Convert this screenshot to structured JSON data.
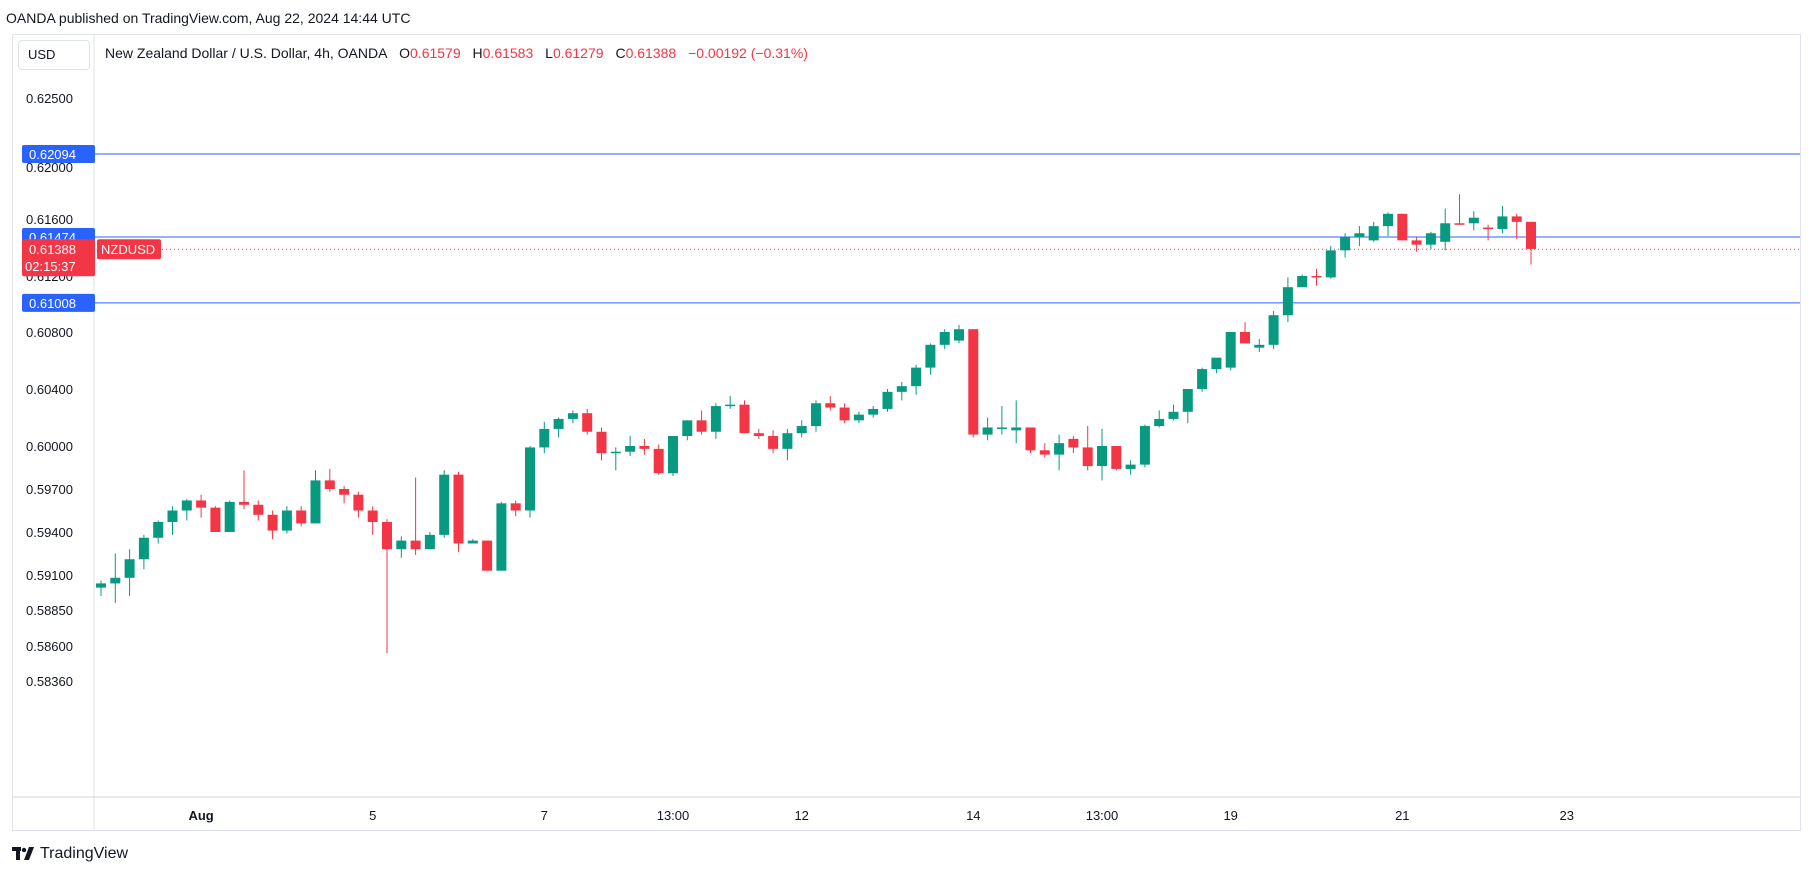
{
  "header": {
    "attribution": "OANDA published on TradingView.com, Aug 22, 2024 14:44 UTC"
  },
  "toolbar": {
    "currency": "USD"
  },
  "legend": {
    "title": "New Zealand Dollar / U.S. Dollar, 4h, OANDA",
    "o_label": "O",
    "o_value": "0.61579",
    "h_label": "H",
    "h_value": "0.61583",
    "l_label": "L",
    "l_value": "0.61279",
    "c_label": "C",
    "c_value": "0.61388",
    "change": "−0.00192 (−0.31%)"
  },
  "footer": {
    "brand": "TradingView"
  },
  "colors": {
    "up": "#089981",
    "down": "#f23645",
    "line": "#2962ff",
    "grid_text": "#131722"
  },
  "chart_data": {
    "type": "candlestick",
    "title": "New Zealand Dollar / U.S. Dollar, 4h, OANDA",
    "symbol": "NZDUSD",
    "y_ticks": [
      "0.62500",
      "0.62000",
      "0.61600",
      "0.61200",
      "0.60800",
      "0.60400",
      "0.60000",
      "0.59700",
      "0.59400",
      "0.59100",
      "0.58850",
      "0.58600",
      "0.58360"
    ],
    "y_tick_values": [
      0.625,
      0.62,
      0.616,
      0.612,
      0.608,
      0.604,
      0.6,
      0.597,
      0.594,
      0.591,
      0.5885,
      0.586,
      0.5836
    ],
    "x_labels": [
      "Aug",
      "5",
      "7",
      "13:00",
      "12",
      "14",
      "13:00",
      "19",
      "21",
      "23"
    ],
    "x_label_bars": [
      7,
      19,
      31,
      40,
      49,
      61,
      70,
      79,
      91,
      102.5
    ],
    "horizontal_lines": [
      {
        "value": 0.62094,
        "label": "0.62094"
      },
      {
        "value": 0.61474,
        "label": "0.61474"
      },
      {
        "value": 0.61008,
        "label": "0.61008"
      }
    ],
    "last_price": {
      "value": 0.61388,
      "label": "0.61388",
      "countdown": "02:15:37",
      "symbol_tag": "NZDUSD"
    },
    "ohlc": [
      [
        0.5901,
        0.5906,
        0.5895,
        0.5904
      ],
      [
        0.5904,
        0.5925,
        0.589,
        0.5908
      ],
      [
        0.5908,
        0.5928,
        0.5895,
        0.5921
      ],
      [
        0.5921,
        0.5938,
        0.5914,
        0.5936
      ],
      [
        0.5936,
        0.5948,
        0.5932,
        0.5947
      ],
      [
        0.5947,
        0.5958,
        0.5938,
        0.5955
      ],
      [
        0.5955,
        0.5963,
        0.5948,
        0.5962
      ],
      [
        0.5962,
        0.5966,
        0.595,
        0.5957
      ],
      [
        0.5957,
        0.5958,
        0.594,
        0.594
      ],
      [
        0.594,
        0.5962,
        0.594,
        0.5961
      ],
      [
        0.5961,
        0.5983,
        0.5956,
        0.5959
      ],
      [
        0.5959,
        0.5962,
        0.5948,
        0.5952
      ],
      [
        0.5952,
        0.5955,
        0.5935,
        0.5941
      ],
      [
        0.5941,
        0.5958,
        0.5939,
        0.5955
      ],
      [
        0.5955,
        0.5958,
        0.5944,
        0.5946
      ],
      [
        0.5946,
        0.5983,
        0.5946,
        0.5976
      ],
      [
        0.5976,
        0.5984,
        0.5968,
        0.597
      ],
      [
        0.597,
        0.5972,
        0.596,
        0.5966
      ],
      [
        0.5966,
        0.5968,
        0.595,
        0.5955
      ],
      [
        0.5955,
        0.5958,
        0.5938,
        0.5947
      ],
      [
        0.5947,
        0.5949,
        0.5855,
        0.5928
      ],
      [
        0.5928,
        0.5937,
        0.5922,
        0.5934
      ],
      [
        0.5934,
        0.5978,
        0.5924,
        0.5928
      ],
      [
        0.5928,
        0.594,
        0.5928,
        0.5938
      ],
      [
        0.5938,
        0.5983,
        0.5936,
        0.598
      ],
      [
        0.598,
        0.5982,
        0.5926,
        0.5932
      ],
      [
        0.5932,
        0.5935,
        0.5932,
        0.5934
      ],
      [
        0.5934,
        0.5934,
        0.5913,
        0.5913
      ],
      [
        0.5913,
        0.5961,
        0.5913,
        0.596
      ],
      [
        0.596,
        0.5962,
        0.5951,
        0.5955
      ],
      [
        0.5955,
        0.6,
        0.595,
        0.5999
      ],
      [
        0.5999,
        0.6017,
        0.5995,
        0.6012
      ],
      [
        0.6012,
        0.602,
        0.6006,
        0.6019
      ],
      [
        0.6019,
        0.6025,
        0.6016,
        0.6023
      ],
      [
        0.6023,
        0.6026,
        0.6008,
        0.601
      ],
      [
        0.601,
        0.6013,
        0.599,
        0.5995
      ],
      [
        0.5995,
        0.5999,
        0.5983,
        0.5996
      ],
      [
        0.5996,
        0.6007,
        0.5993,
        0.6
      ],
      [
        0.6,
        0.6005,
        0.5994,
        0.5998
      ],
      [
        0.5998,
        0.6001,
        0.598,
        0.5981
      ],
      [
        0.5981,
        0.6007,
        0.5979,
        0.6007
      ],
      [
        0.6007,
        0.6018,
        0.6004,
        0.6018
      ],
      [
        0.6018,
        0.6025,
        0.6008,
        0.601
      ],
      [
        0.601,
        0.603,
        0.6005,
        0.6028
      ],
      [
        0.6028,
        0.6035,
        0.6026,
        0.6029
      ],
      [
        0.6029,
        0.6032,
        0.6009,
        0.6009
      ],
      [
        0.6009,
        0.6012,
        0.6005,
        0.6007
      ],
      [
        0.6007,
        0.6011,
        0.5995,
        0.5998
      ],
      [
        0.5998,
        0.6012,
        0.599,
        0.6009
      ],
      [
        0.6009,
        0.6018,
        0.6006,
        0.6014
      ],
      [
        0.6014,
        0.6032,
        0.601,
        0.603
      ],
      [
        0.603,
        0.6035,
        0.6025,
        0.6027
      ],
      [
        0.6027,
        0.603,
        0.6016,
        0.6018
      ],
      [
        0.6018,
        0.6024,
        0.6016,
        0.6022
      ],
      [
        0.6022,
        0.6028,
        0.602,
        0.6026
      ],
      [
        0.6026,
        0.604,
        0.6024,
        0.6038
      ],
      [
        0.6038,
        0.6045,
        0.6032,
        0.6042
      ],
      [
        0.6042,
        0.6057,
        0.6036,
        0.6055
      ],
      [
        0.6055,
        0.6072,
        0.605,
        0.6071
      ],
      [
        0.6071,
        0.6082,
        0.6068,
        0.608
      ],
      [
        0.6074,
        0.6085,
        0.6072,
        0.6082
      ],
      [
        0.6082,
        0.6082,
        0.6006,
        0.6008
      ],
      [
        0.6008,
        0.602,
        0.6004,
        0.6013
      ],
      [
        0.6013,
        0.6028,
        0.6008,
        0.6013
      ],
      [
        0.6011,
        0.6032,
        0.6002,
        0.6013
      ],
      [
        0.6013,
        0.6013,
        0.5995,
        0.5997
      ],
      [
        0.5997,
        0.6002,
        0.5992,
        0.5994
      ],
      [
        0.5994,
        0.6008,
        0.5983,
        0.6002
      ],
      [
        0.6005,
        0.6007,
        0.5995,
        0.5999
      ],
      [
        0.5999,
        0.6014,
        0.5983,
        0.5986
      ],
      [
        0.5986,
        0.6012,
        0.5976,
        0.6
      ],
      [
        0.6,
        0.6,
        0.5983,
        0.5984
      ],
      [
        0.5984,
        0.599,
        0.598,
        0.5987
      ],
      [
        0.5987,
        0.6015,
        0.5985,
        0.6014
      ],
      [
        0.6014,
        0.6025,
        0.6013,
        0.6019
      ],
      [
        0.6019,
        0.6029,
        0.6018,
        0.6024
      ],
      [
        0.6024,
        0.604,
        0.6016,
        0.604
      ],
      [
        0.604,
        0.6055,
        0.6038,
        0.6054
      ],
      [
        0.6054,
        0.606,
        0.6051,
        0.6062
      ],
      [
        0.6055,
        0.6078,
        0.6053,
        0.608
      ],
      [
        0.608,
        0.6087,
        0.6073,
        0.6072
      ],
      [
        0.6069,
        0.6075,
        0.6066,
        0.6071
      ],
      [
        0.6071,
        0.6095,
        0.6068,
        0.6092
      ],
      [
        0.6092,
        0.6119,
        0.6087,
        0.6112
      ],
      [
        0.6112,
        0.6121,
        0.6112,
        0.612
      ],
      [
        0.612,
        0.6125,
        0.6113,
        0.6119
      ],
      [
        0.6119,
        0.6141,
        0.6118,
        0.6138
      ],
      [
        0.6138,
        0.615,
        0.6133,
        0.6147
      ],
      [
        0.6147,
        0.6155,
        0.6141,
        0.615
      ],
      [
        0.6145,
        0.6158,
        0.6144,
        0.6155
      ],
      [
        0.6155,
        0.6165,
        0.6148,
        0.6164
      ],
      [
        0.6164,
        0.6164,
        0.6145,
        0.6145
      ],
      [
        0.6145,
        0.6147,
        0.6137,
        0.6142
      ],
      [
        0.6142,
        0.6151,
        0.6139,
        0.615
      ],
      [
        0.6144,
        0.6168,
        0.6138,
        0.6157
      ],
      [
        0.6157,
        0.6179,
        0.6156,
        0.6156
      ],
      [
        0.6157,
        0.6166,
        0.6152,
        0.6161
      ],
      [
        0.6154,
        0.6156,
        0.6145,
        0.6153
      ],
      [
        0.6153,
        0.617,
        0.615,
        0.6162
      ],
      [
        0.6162,
        0.6164,
        0.6146,
        0.6158
      ],
      [
        0.6158,
        0.6158,
        0.6128,
        0.6139
      ]
    ]
  }
}
